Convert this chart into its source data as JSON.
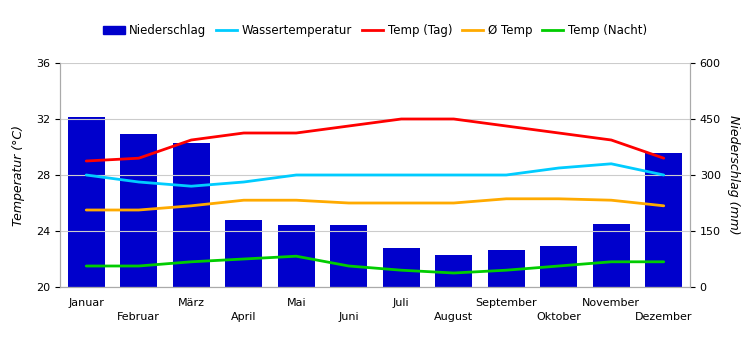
{
  "months": [
    "Januar",
    "Februar",
    "März",
    "April",
    "Mai",
    "Juni",
    "Juli",
    "August",
    "September",
    "Oktober",
    "November",
    "Dezember"
  ],
  "niederschlag": [
    455,
    410,
    385,
    180,
    165,
    165,
    105,
    85,
    100,
    110,
    170,
    360
  ],
  "temp_tag": [
    29.0,
    29.2,
    30.5,
    31.0,
    31.0,
    31.5,
    32.0,
    32.0,
    31.5,
    31.0,
    30.5,
    29.2
  ],
  "wassertemp": [
    28.0,
    27.5,
    27.2,
    27.5,
    28.0,
    28.0,
    28.0,
    28.0,
    28.0,
    28.5,
    28.8,
    28.0
  ],
  "avg_temp": [
    25.5,
    25.5,
    25.8,
    26.2,
    26.2,
    26.0,
    26.0,
    26.0,
    26.3,
    26.3,
    26.2,
    25.8
  ],
  "temp_nacht": [
    21.5,
    21.5,
    21.8,
    22.0,
    22.2,
    21.5,
    21.2,
    21.0,
    21.2,
    21.5,
    21.8,
    21.8
  ],
  "bar_color": "#0000cc",
  "line_temp_tag": "#ff0000",
  "line_wassertemp": "#00ccff",
  "line_avg_temp": "#ffaa00",
  "line_temp_nacht": "#00cc00",
  "ylabel_left": "Temperatur (°C)",
  "ylabel_right": "Niederschlag (mm)",
  "temp_ylim": [
    20,
    36
  ],
  "temp_yticks": [
    20,
    24,
    28,
    32,
    36
  ],
  "precip_ylim": [
    0,
    600
  ],
  "precip_yticks": [
    0,
    150,
    300,
    450,
    600
  ],
  "background_color": "#ffffff",
  "grid_color": "#cccccc",
  "legend_items": [
    "Niederschlag",
    "Wassertemperatur",
    "Temp (Tag)",
    "Ø Temp",
    "Temp (Nacht)"
  ],
  "figsize": [
    7.5,
    3.5
  ],
  "dpi": 100
}
